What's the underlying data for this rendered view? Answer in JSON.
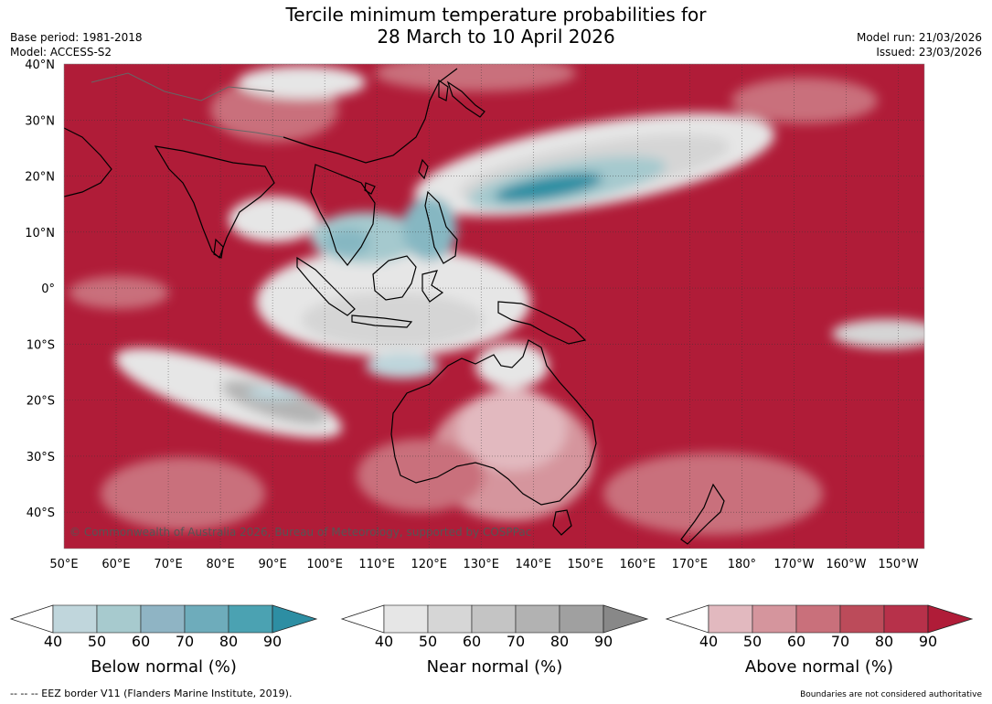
{
  "title": {
    "line1": "Tercile minimum temperature probabilities for",
    "line2": "28 March to 10 April 2026"
  },
  "meta": {
    "base_period": "Base period: 1981-2018",
    "model": "Model: ACCESS-S2",
    "model_run": "Model run: 21/03/2026",
    "issued": "Issued: 23/03/2026"
  },
  "map": {
    "lat_labels": [
      "40°N",
      "30°N",
      "20°N",
      "10°N",
      "0°",
      "10°S",
      "20°S",
      "30°S",
      "40°S"
    ],
    "lon_labels": [
      "50°E",
      "60°E",
      "70°E",
      "80°E",
      "90°E",
      "100°E",
      "110°E",
      "120°E",
      "130°E",
      "140°E",
      "150°E",
      "160°E",
      "170°E",
      "180°",
      "170°W",
      "160°W",
      "150°W"
    ],
    "copyright": "© Commonwealth of Australia 2026, Bureau of Meteorology, supported by COSPPac",
    "colors": {
      "above": [
        "#e2b9bf",
        "#d5959d",
        "#c9707b",
        "#bc4b5a",
        "#b01c38"
      ],
      "near": [
        "#e6e6e6",
        "#d5d5d5",
        "#c4c4c4",
        "#b3b3b3",
        "#9c9c9c"
      ],
      "below": [
        "#bed5db",
        "#a5c9ce",
        "#86b7c2",
        "#5fa7b5",
        "#2c8ea3"
      ]
    }
  },
  "legends": [
    {
      "id": "below",
      "title": "Below normal (%)",
      "ticks": [
        "40",
        "50",
        "60",
        "70",
        "80",
        "90"
      ],
      "colors": [
        "#c0d6dc",
        "#a7cace",
        "#8fb4c4",
        "#6eacbb",
        "#4ba2b2",
        "#2d8ea3"
      ]
    },
    {
      "id": "near",
      "title": "Near normal (%)",
      "ticks": [
        "40",
        "50",
        "60",
        "70",
        "80",
        "90"
      ],
      "colors": [
        "#e6e6e6",
        "#d6d6d6",
        "#c4c4c4",
        "#b2b2b2",
        "#a0a0a0",
        "#888888"
      ]
    },
    {
      "id": "above",
      "title": "Above normal (%)",
      "ticks": [
        "40",
        "50",
        "60",
        "70",
        "80",
        "90"
      ],
      "colors": [
        "#e2b9bf",
        "#d5959d",
        "#c9707b",
        "#bc4b5a",
        "#b7314a",
        "#b01c38"
      ]
    }
  ],
  "footer": {
    "eez": "--  --  -- EEZ border V11 (Flanders Marine Institute, 2019).",
    "disclaimer": "Boundaries are not considered authoritative"
  }
}
